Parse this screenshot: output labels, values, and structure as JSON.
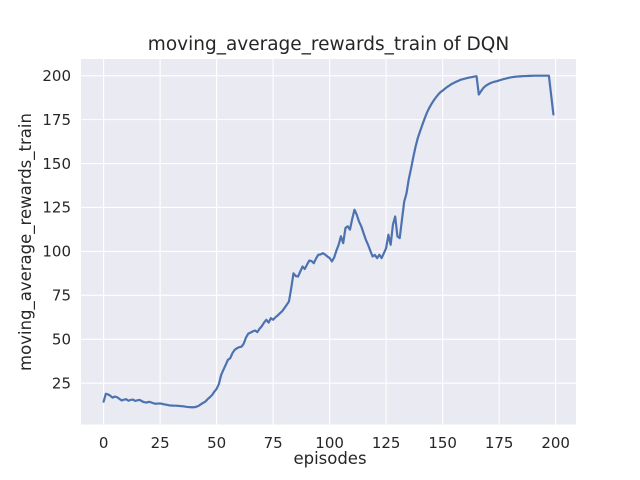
{
  "chart_data": {
    "type": "line",
    "title": "moving_average_rewards_train of DQN",
    "xlabel": "episodes",
    "ylabel": "moving_average_rewards_train",
    "x_start": 0,
    "x_step": 1,
    "xticks": [
      0,
      25,
      50,
      75,
      100,
      125,
      150,
      175,
      200
    ],
    "yticks": [
      25,
      50,
      75,
      100,
      125,
      150,
      175,
      200
    ],
    "xlim": [
      -10,
      209
    ],
    "ylim": [
      1.5,
      209.5
    ],
    "grid": true,
    "legend": "none",
    "axes_bg_color": "#eaeaf2",
    "grid_color": "#ffffff",
    "line_color": "#4c72b0",
    "text_color": "#262626",
    "values": [
      14.5,
      19.0,
      18.6,
      17.8,
      16.8,
      17.4,
      17.0,
      16.1,
      15.2,
      15.6,
      15.9,
      15.0,
      15.5,
      15.7,
      14.9,
      15.3,
      15.5,
      14.7,
      14.2,
      14.0,
      14.4,
      14.1,
      13.6,
      13.3,
      13.4,
      13.5,
      13.2,
      12.9,
      12.7,
      12.4,
      12.3,
      12.2,
      12.2,
      12.1,
      12.0,
      11.9,
      11.7,
      11.5,
      11.4,
      11.3,
      11.3,
      11.6,
      12.1,
      13.0,
      13.8,
      14.5,
      15.9,
      17.0,
      18.3,
      20.2,
      21.8,
      24.5,
      29.7,
      32.6,
      35.4,
      38.3,
      39.2,
      42.1,
      44.0,
      44.9,
      45.5,
      45.8,
      47.5,
      51.0,
      53.2,
      53.8,
      54.5,
      55.0,
      54.1,
      56.0,
      57.5,
      59.5,
      61.1,
      59.5,
      62.0,
      61.1,
      62.5,
      63.5,
      64.8,
      66.0,
      67.7,
      69.6,
      71.5,
      79.0,
      87.5,
      86.0,
      85.7,
      88.5,
      91.4,
      90.0,
      92.5,
      94.8,
      94.5,
      93.3,
      96.0,
      98.1,
      98.3,
      99.0,
      98.2,
      97.1,
      96.3,
      94.3,
      96.5,
      100.5,
      103.8,
      108.6,
      104.7,
      113.3,
      114.3,
      112.4,
      118.5,
      123.7,
      120.9,
      117.0,
      114.3,
      110.5,
      106.7,
      103.8,
      100.4,
      97.1,
      98.0,
      96.2,
      98.1,
      96.2,
      99.0,
      101.9,
      109.5,
      103.8,
      115.2,
      119.9,
      108.5,
      107.6,
      118.0,
      128.4,
      133.0,
      141.0,
      147.0,
      153.5,
      159.5,
      164.5,
      168.3,
      172.0,
      175.5,
      178.8,
      181.5,
      183.8,
      185.8,
      187.6,
      189.2,
      190.6,
      191.5,
      192.6,
      193.6,
      194.4,
      195.3,
      195.9,
      196.6,
      197.1,
      197.7,
      198.0,
      198.4,
      198.7,
      199.0,
      199.2,
      199.5,
      199.7,
      189.3,
      191.2,
      193.0,
      194.2,
      195.0,
      195.7,
      196.2,
      196.6,
      196.9,
      197.3,
      197.7,
      198.1,
      198.4,
      198.7,
      199.0,
      199.2,
      199.4,
      199.5,
      199.6,
      199.7,
      199.8,
      199.8,
      199.9,
      199.9,
      200.0,
      200.0,
      200.0,
      200.0,
      200.0,
      200.0,
      200.0,
      200.0,
      189.0,
      178.0
    ]
  }
}
